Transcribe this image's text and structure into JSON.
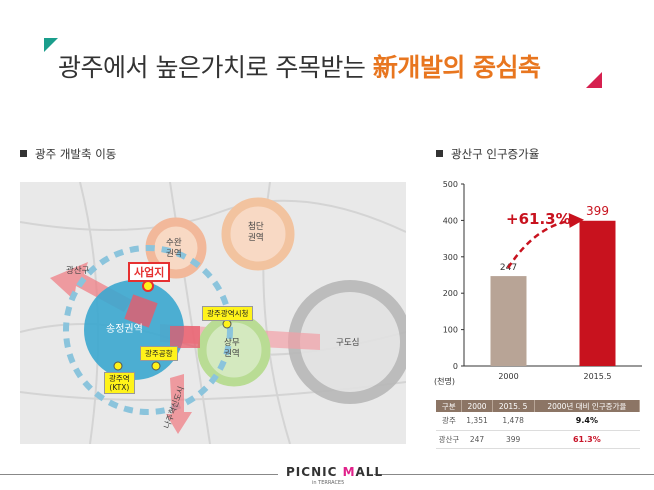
{
  "title": {
    "main": "광주에서 높은가치로 주목받는 ",
    "highlight": "新개발의 중심축"
  },
  "left_section": "광주 개발축 이동",
  "right_section": "광산구 인구증가율",
  "map": {
    "site": "사업지",
    "district_top_left": "광산구",
    "zones": {
      "suwan": "수완\n권역",
      "cheomdan": "첨단\n권역",
      "songjeong": "송정권역",
      "sangmu": "상무\n권역",
      "old_city": "구도심"
    },
    "labels": {
      "city_hall": "광주광역시청",
      "airport": "광주공항",
      "station": "광주역\n(KTX)"
    },
    "arrow_text": "나주혁신도시"
  },
  "chart_data": {
    "type": "bar",
    "categories": [
      "2000",
      "2015.5"
    ],
    "values": [
      247,
      399
    ],
    "ylim": [
      0,
      500
    ],
    "yticks": [
      0,
      100,
      200,
      300,
      400,
      500
    ],
    "ylabel": "(천명)",
    "annotation": "+61.3%",
    "colors": [
      "#b8a496",
      "#c8121e"
    ]
  },
  "table": {
    "headers": [
      "구분",
      "2000",
      "2015. 5",
      "2000년 대비 인구증가율"
    ],
    "rows": [
      [
        "광주",
        "1,351",
        "1,478",
        "9.4%"
      ],
      [
        "광산구",
        "247",
        "399",
        "61.3%"
      ]
    ]
  },
  "footer": {
    "brand_pre": "PICNIC ",
    "brand_m": "M",
    "brand_post": "ALL",
    "sub": "in TERRACE5"
  }
}
